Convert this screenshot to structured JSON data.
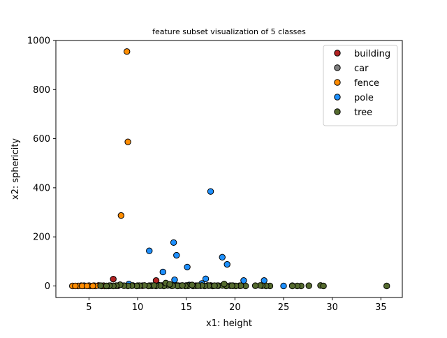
{
  "chart_data": {
    "type": "scatter",
    "title": "feature subset visualization of 5 classes",
    "xlabel": "x1: height",
    "ylabel": "x2: sphericity",
    "xlim": [
      1.6,
      37.2
    ],
    "ylim": [
      -47,
      1000
    ],
    "xticks": [
      5,
      10,
      15,
      20,
      25,
      30,
      35
    ],
    "yticks": [
      0,
      200,
      400,
      600,
      800,
      1000
    ],
    "grid": false,
    "legend": "top-right",
    "series": [
      {
        "name": "building",
        "color": "#b22222",
        "points": [
          [
            7.5,
            28
          ],
          [
            11.9,
            22
          ],
          [
            4.2,
            1
          ],
          [
            5.0,
            1
          ],
          [
            6.0,
            2
          ],
          [
            7.2,
            1
          ],
          [
            8.0,
            1
          ],
          [
            9.5,
            2
          ],
          [
            10.5,
            1
          ],
          [
            11.2,
            1
          ],
          [
            12.5,
            2
          ],
          [
            13.5,
            1
          ],
          [
            14.2,
            1
          ],
          [
            15.0,
            2
          ],
          [
            16.0,
            1
          ],
          [
            17.5,
            2
          ],
          [
            18.3,
            1
          ],
          [
            19.0,
            2
          ]
        ]
      },
      {
        "name": "car",
        "color": "#808080",
        "points": [
          [
            4.5,
            1
          ],
          [
            5.5,
            1
          ],
          [
            6.5,
            1
          ],
          [
            7.8,
            1
          ],
          [
            9.0,
            2
          ],
          [
            10.0,
            1
          ],
          [
            11.5,
            1
          ],
          [
            12.8,
            2
          ],
          [
            14.0,
            2
          ],
          [
            15.2,
            1
          ],
          [
            16.5,
            1
          ],
          [
            17.2,
            2
          ],
          [
            19.5,
            1
          ],
          [
            20.5,
            1
          ]
        ]
      },
      {
        "name": "fence",
        "color": "#ff8c00",
        "points": [
          [
            8.9,
            955
          ],
          [
            9.0,
            587
          ],
          [
            8.3,
            287
          ],
          [
            3.3,
            0
          ],
          [
            3.9,
            0
          ],
          [
            4.3,
            0
          ],
          [
            5.1,
            0
          ],
          [
            5.7,
            0
          ],
          [
            6.3,
            0
          ],
          [
            6.6,
            0
          ],
          [
            7.0,
            0
          ],
          [
            4.8,
            0
          ],
          [
            3.6,
            0
          ],
          [
            5.4,
            0
          ]
        ]
      },
      {
        "name": "pole",
        "color": "#1e90ff",
        "points": [
          [
            17.5,
            385
          ],
          [
            13.7,
            177
          ],
          [
            11.2,
            143
          ],
          [
            14.0,
            125
          ],
          [
            18.7,
            117
          ],
          [
            19.2,
            88
          ],
          [
            15.1,
            77
          ],
          [
            12.6,
            57
          ],
          [
            17.0,
            29
          ],
          [
            13.8,
            25
          ],
          [
            20.9,
            22
          ],
          [
            23.0,
            22
          ],
          [
            9.1,
            8
          ],
          [
            16.6,
            10
          ],
          [
            25.0,
            0
          ],
          [
            12.2,
            3
          ],
          [
            15.3,
            4
          ],
          [
            19.8,
            1
          ]
        ]
      },
      {
        "name": "tree",
        "color": "#556b2f",
        "points": [
          [
            35.6,
            0
          ],
          [
            28.8,
            2
          ],
          [
            29.1,
            0
          ],
          [
            27.6,
            1
          ],
          [
            26.8,
            0
          ],
          [
            26.4,
            0
          ],
          [
            25.9,
            1
          ],
          [
            25.9,
            0
          ],
          [
            23.6,
            0
          ],
          [
            23.2,
            0
          ],
          [
            22.8,
            1
          ],
          [
            22.6,
            2
          ],
          [
            22.1,
            1
          ],
          [
            21.1,
            0
          ],
          [
            20.6,
            1
          ],
          [
            20.1,
            0
          ],
          [
            19.7,
            1
          ],
          [
            19.1,
            0
          ],
          [
            18.7,
            2
          ],
          [
            18.2,
            1
          ],
          [
            17.7,
            0
          ],
          [
            17.3,
            1
          ],
          [
            16.9,
            0
          ],
          [
            16.6,
            2
          ],
          [
            16.2,
            1
          ],
          [
            15.7,
            0
          ],
          [
            15.2,
            1
          ],
          [
            14.9,
            0
          ],
          [
            14.5,
            1
          ],
          [
            14.1,
            0
          ],
          [
            13.6,
            1
          ],
          [
            13.1,
            2
          ],
          [
            12.7,
            0
          ],
          [
            12.3,
            1
          ],
          [
            11.9,
            0
          ],
          [
            11.4,
            1
          ],
          [
            11.1,
            0
          ],
          [
            10.7,
            2
          ],
          [
            10.2,
            1
          ],
          [
            9.9,
            0
          ],
          [
            9.4,
            1
          ],
          [
            9.0,
            0
          ],
          [
            8.6,
            1
          ],
          [
            8.2,
            5
          ],
          [
            7.8,
            1
          ],
          [
            7.5,
            0
          ],
          [
            7.1,
            1
          ],
          [
            6.8,
            0
          ],
          [
            6.2,
            1
          ],
          [
            12.9,
            12
          ],
          [
            13.3,
            7
          ],
          [
            14.6,
            2
          ],
          [
            15.6,
            4
          ],
          [
            17.9,
            1
          ],
          [
            18.9,
            8
          ],
          [
            11.7,
            2
          ]
        ]
      }
    ]
  }
}
